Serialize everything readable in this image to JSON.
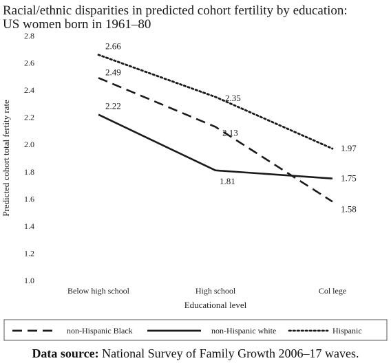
{
  "chart_data": {
    "type": "line",
    "title": "Racial/ethnic disparities in predicted cohort fertility by education:",
    "subtitle": "US women born in 1961–80",
    "xlabel": "Educational level",
    "ylabel": "Predicted cohort total fertity rate",
    "categories": [
      "Below high school",
      "High school",
      "Col lege"
    ],
    "ylim": [
      1.0,
      2.8
    ],
    "yticks": [
      "1.0",
      "1.2",
      "1.4",
      "1.6",
      "1.8",
      "2.0",
      "2.2",
      "2.4",
      "2.6",
      "2.8"
    ],
    "grid": false,
    "legend_position": "bottom",
    "series": [
      {
        "name": "non-Hispanic Black",
        "style": "dashed",
        "values": [
          2.49,
          2.13,
          1.58
        ],
        "labels": [
          "2.49",
          "2.13",
          "1.58"
        ]
      },
      {
        "name": "non-Hispanic white",
        "style": "solid",
        "values": [
          2.22,
          1.81,
          1.75
        ],
        "labels": [
          "2.22",
          "1.81",
          "1.75"
        ]
      },
      {
        "name": "Hispanic",
        "style": "dotted",
        "values": [
          2.66,
          2.35,
          1.97
        ],
        "labels": [
          "2.66",
          "2.35",
          "1.97"
        ]
      }
    ],
    "line_color": "#1a1a1a"
  },
  "footer": {
    "source_label": "Data source:",
    "source_text": " National Survey of Family Growth 2006–17 waves."
  }
}
